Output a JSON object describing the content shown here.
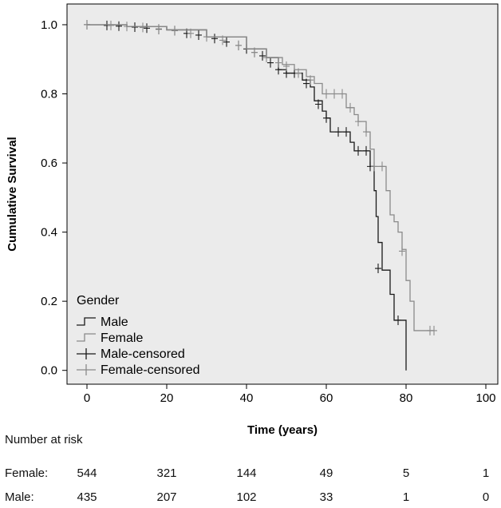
{
  "chart_data": {
    "type": "line",
    "subtype": "kaplan-meier",
    "title": "",
    "xlabel": "Time (years)",
    "ylabel": "Cumulative Survival",
    "xlim": [
      -5,
      103
    ],
    "ylim": [
      -0.04,
      1.06
    ],
    "x_ticks": [
      0,
      20,
      40,
      60,
      80,
      100
    ],
    "y_ticks": [
      0.0,
      0.2,
      0.4,
      0.6,
      0.8,
      1.0
    ],
    "x_tick_labels": [
      "0",
      "20",
      "40",
      "60",
      "80",
      "100"
    ],
    "y_tick_labels": [
      "0.0",
      "0.2",
      "0.4",
      "0.6",
      "0.8",
      "1.0"
    ],
    "grid": false,
    "background_color": "#ebebeb",
    "legend": {
      "title": "Gender",
      "position": "bottom-left",
      "entries": [
        "Male",
        "Female",
        "Male-censored",
        "Female-censored"
      ]
    },
    "series": [
      {
        "name": "Male",
        "color": "#1a1a1a",
        "points": [
          [
            0,
            1.0
          ],
          [
            10,
            0.995
          ],
          [
            20,
            0.985
          ],
          [
            30,
            0.965
          ],
          [
            40,
            0.93
          ],
          [
            45,
            0.905
          ],
          [
            48,
            0.87
          ],
          [
            50,
            0.86
          ],
          [
            54,
            0.84
          ],
          [
            56,
            0.82
          ],
          [
            57,
            0.78
          ],
          [
            59,
            0.75
          ],
          [
            60,
            0.73
          ],
          [
            61,
            0.69
          ],
          [
            66,
            0.66
          ],
          [
            67,
            0.635
          ],
          [
            71,
            0.59
          ],
          [
            72,
            0.52
          ],
          [
            72.5,
            0.445
          ],
          [
            73,
            0.37
          ],
          [
            74,
            0.29
          ],
          [
            76,
            0.22
          ],
          [
            77,
            0.145
          ],
          [
            80,
            0.145
          ],
          [
            80,
            0.0
          ]
        ],
        "censored": [
          [
            0,
            1.0
          ],
          [
            5,
            0.998
          ],
          [
            8,
            0.996
          ],
          [
            12,
            0.993
          ],
          [
            15,
            0.99
          ],
          [
            18,
            0.987
          ],
          [
            22,
            0.983
          ],
          [
            25,
            0.975
          ],
          [
            28,
            0.97
          ],
          [
            32,
            0.96
          ],
          [
            35,
            0.95
          ],
          [
            38,
            0.94
          ],
          [
            40,
            0.93
          ],
          [
            42,
            0.92
          ],
          [
            44,
            0.91
          ],
          [
            46,
            0.89
          ],
          [
            48,
            0.87
          ],
          [
            50,
            0.86
          ],
          [
            52,
            0.86
          ],
          [
            55,
            0.83
          ],
          [
            58,
            0.77
          ],
          [
            60,
            0.73
          ],
          [
            63,
            0.69
          ],
          [
            65,
            0.69
          ],
          [
            68,
            0.635
          ],
          [
            70,
            0.635
          ],
          [
            71,
            0.59
          ],
          [
            73,
            0.295
          ],
          [
            78,
            0.145
          ]
        ]
      },
      {
        "name": "Female",
        "color": "#8a8a8a",
        "points": [
          [
            0,
            1.0
          ],
          [
            10,
            0.995
          ],
          [
            20,
            0.985
          ],
          [
            30,
            0.965
          ],
          [
            40,
            0.93
          ],
          [
            45,
            0.905
          ],
          [
            49,
            0.885
          ],
          [
            52,
            0.87
          ],
          [
            55,
            0.85
          ],
          [
            57,
            0.83
          ],
          [
            59,
            0.8
          ],
          [
            65,
            0.76
          ],
          [
            67,
            0.74
          ],
          [
            68,
            0.72
          ],
          [
            70,
            0.69
          ],
          [
            71,
            0.64
          ],
          [
            72,
            0.59
          ],
          [
            74,
            0.59
          ],
          [
            75,
            0.52
          ],
          [
            76,
            0.45
          ],
          [
            77,
            0.43
          ],
          [
            78,
            0.4
          ],
          [
            79,
            0.35
          ],
          [
            80,
            0.26
          ],
          [
            81,
            0.2
          ],
          [
            82,
            0.115
          ],
          [
            87,
            0.115
          ]
        ],
        "censored": [
          [
            0,
            1.0
          ],
          [
            6,
            0.998
          ],
          [
            10,
            0.995
          ],
          [
            14,
            0.992
          ],
          [
            18,
            0.988
          ],
          [
            22,
            0.983
          ],
          [
            26,
            0.975
          ],
          [
            30,
            0.965
          ],
          [
            34,
            0.955
          ],
          [
            38,
            0.94
          ],
          [
            42,
            0.92
          ],
          [
            45,
            0.905
          ],
          [
            48,
            0.89
          ],
          [
            50,
            0.88
          ],
          [
            53,
            0.86
          ],
          [
            56,
            0.84
          ],
          [
            60,
            0.8
          ],
          [
            62,
            0.8
          ],
          [
            64,
            0.8
          ],
          [
            66,
            0.76
          ],
          [
            68,
            0.72
          ],
          [
            70,
            0.69
          ],
          [
            72,
            0.59
          ],
          [
            74,
            0.59
          ],
          [
            79,
            0.345
          ],
          [
            86,
            0.115
          ],
          [
            87,
            0.115
          ]
        ]
      }
    ],
    "risk_table": {
      "title": "Number at risk",
      "times": [
        0,
        20,
        40,
        60,
        80,
        100
      ],
      "rows": [
        {
          "label": "Female:",
          "values": [
            "544",
            "321",
            "144",
            "49",
            "5",
            "1"
          ]
        },
        {
          "label": "Male:",
          "values": [
            "435",
            "207",
            "102",
            "33",
            "1",
            "0"
          ]
        }
      ]
    }
  }
}
